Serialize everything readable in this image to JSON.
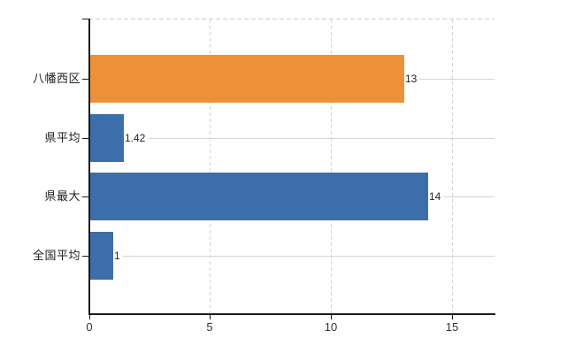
{
  "chart_data": {
    "type": "bar",
    "orientation": "horizontal",
    "title": "",
    "categories": [
      "八幡西区",
      "県平均",
      "県最大",
      "全国平均"
    ],
    "values": [
      13,
      1.42,
      14,
      1
    ],
    "value_labels": [
      "13",
      "1.42",
      "14",
      "1"
    ],
    "bar_colors": [
      "#ED9138",
      "#3D6EAC",
      "#3D6EAC",
      "#3D6EAC"
    ],
    "x_tick_labels": [
      "0",
      "5",
      "10",
      "15"
    ],
    "x_tick_values": [
      0,
      5,
      10,
      15
    ],
    "xlim": [
      0,
      16.77
    ],
    "grid": {
      "vertical_gridlines": "dashed",
      "horizontal_category_lines": "solid",
      "top_border": "dashed"
    },
    "legend": null
  },
  "colors": {
    "bar_orange": "#ED9138",
    "bar_blue": "#3D6EAC",
    "grid_vertical": "#D5D5D5",
    "grid_horizontal": "#D2D6CC",
    "top_border": "#CBCBCB",
    "axis": "#1A1A1A",
    "text": "#222222"
  }
}
